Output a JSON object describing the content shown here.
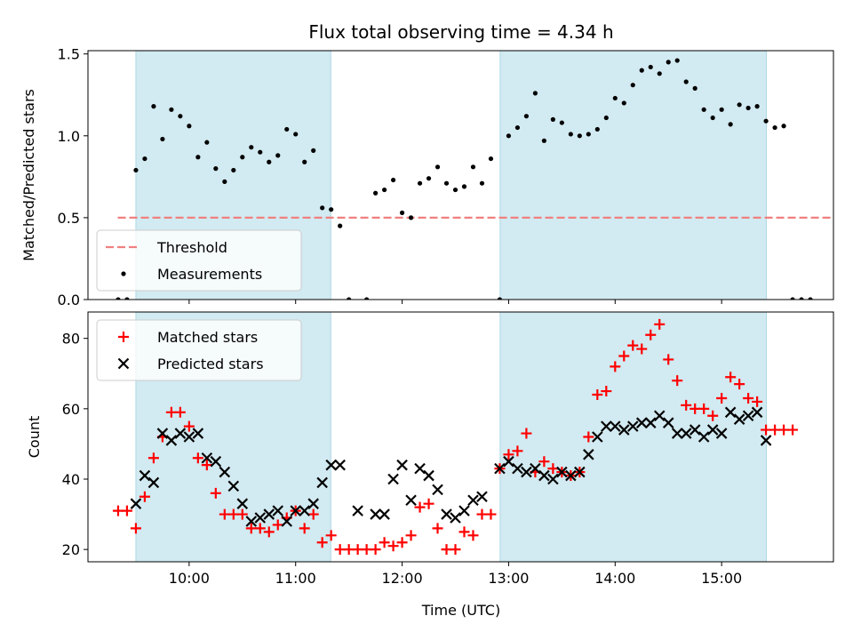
{
  "chart_data": {
    "type": "scatter",
    "title": "Flux total observing time = 4.34 h",
    "xlabel": "Time (UTC)",
    "x_ticks": [
      "10:00",
      "11:00",
      "12:00",
      "13:00",
      "14:00",
      "15:00"
    ],
    "x_tick_hours": [
      10,
      11,
      12,
      13,
      14,
      15
    ],
    "xlim_hours": [
      9.05,
      16.05
    ],
    "shaded_intervals_hours": [
      [
        9.5,
        11.33
      ],
      [
        12.92,
        15.42
      ]
    ],
    "shade_color": "#add8e6",
    "panels": [
      {
        "id": "ratio",
        "ylabel": "Matched/Predicted stars",
        "ylim": [
          0,
          1.52
        ],
        "y_ticks": [
          0.0,
          0.5,
          1.0,
          1.5
        ],
        "y_tick_labels": [
          "0.0",
          "0.5",
          "1.0",
          "1.5"
        ],
        "legend": {
          "placement": "lower-left",
          "entries": [
            "Threshold",
            "Measurements"
          ]
        },
        "threshold": {
          "name": "Threshold",
          "y": 0.5,
          "x_range_hours": [
            9.33,
            16.5
          ],
          "color": "#f08080"
        },
        "series": [
          {
            "name": "Measurements",
            "marker": "dot",
            "color": "#000000",
            "points": [
              [
                "09:20",
                0.0
              ],
              [
                "09:25",
                0.0
              ],
              [
                "09:30",
                0.79
              ],
              [
                "09:35",
                0.86
              ],
              [
                "09:40",
                1.18
              ],
              [
                "09:45",
                0.98
              ],
              [
                "09:50",
                1.16
              ],
              [
                "09:55",
                1.12
              ],
              [
                "10:00",
                1.06
              ],
              [
                "10:05",
                0.87
              ],
              [
                "10:10",
                0.96
              ],
              [
                "10:15",
                0.8
              ],
              [
                "10:20",
                0.72
              ],
              [
                "10:25",
                0.79
              ],
              [
                "10:30",
                0.87
              ],
              [
                "10:35",
                0.93
              ],
              [
                "10:40",
                0.9
              ],
              [
                "10:45",
                0.84
              ],
              [
                "10:50",
                0.88
              ],
              [
                "10:55",
                1.04
              ],
              [
                "11:00",
                1.01
              ],
              [
                "11:05",
                0.84
              ],
              [
                "11:10",
                0.91
              ],
              [
                "11:15",
                0.56
              ],
              [
                "11:20",
                0.55
              ],
              [
                "11:25",
                0.45
              ],
              [
                "11:30",
                0.0
              ],
              [
                "11:40",
                0.0
              ],
              [
                "11:45",
                0.65
              ],
              [
                "11:50",
                0.67
              ],
              [
                "11:55",
                0.73
              ],
              [
                "12:00",
                0.53
              ],
              [
                "12:05",
                0.5
              ],
              [
                "12:10",
                0.71
              ],
              [
                "12:15",
                0.74
              ],
              [
                "12:20",
                0.81
              ],
              [
                "12:25",
                0.71
              ],
              [
                "12:30",
                0.67
              ],
              [
                "12:35",
                0.69
              ],
              [
                "12:40",
                0.81
              ],
              [
                "12:45",
                0.71
              ],
              [
                "12:50",
                0.86
              ],
              [
                "12:55",
                0.0
              ],
              [
                "13:00",
                1.0
              ],
              [
                "13:05",
                1.05
              ],
              [
                "13:10",
                1.12
              ],
              [
                "13:15",
                1.26
              ],
              [
                "13:20",
                0.97
              ],
              [
                "13:25",
                1.1
              ],
              [
                "13:30",
                1.08
              ],
              [
                "13:35",
                1.01
              ],
              [
                "13:40",
                1.0
              ],
              [
                "13:45",
                1.01
              ],
              [
                "13:50",
                1.04
              ],
              [
                "13:55",
                1.11
              ],
              [
                "14:00",
                1.23
              ],
              [
                "14:05",
                1.2
              ],
              [
                "14:10",
                1.31
              ],
              [
                "14:15",
                1.4
              ],
              [
                "14:20",
                1.42
              ],
              [
                "14:25",
                1.38
              ],
              [
                "14:30",
                1.45
              ],
              [
                "14:35",
                1.46
              ],
              [
                "14:40",
                1.33
              ],
              [
                "14:45",
                1.29
              ],
              [
                "14:50",
                1.16
              ],
              [
                "14:55",
                1.11
              ],
              [
                "15:00",
                1.16
              ],
              [
                "15:05",
                1.07
              ],
              [
                "15:10",
                1.19
              ],
              [
                "15:15",
                1.17
              ],
              [
                "15:20",
                1.18
              ],
              [
                "15:25",
                1.09
              ],
              [
                "15:30",
                1.05
              ],
              [
                "15:35",
                1.06
              ],
              [
                "15:40",
                0.0
              ],
              [
                "15:45",
                0.0
              ],
              [
                "15:50",
                0.0
              ]
            ]
          }
        ]
      },
      {
        "id": "count",
        "ylabel": "Count",
        "ylim": [
          16.5,
          87.5
        ],
        "y_ticks": [
          20,
          40,
          60,
          80
        ],
        "y_tick_labels": [
          "20",
          "40",
          "60",
          "80"
        ],
        "legend": {
          "placement": "upper-left",
          "entries": [
            "Matched stars",
            "Predicted stars"
          ]
        },
        "series": [
          {
            "name": "Matched stars",
            "marker": "plus",
            "color": "#ff0000",
            "points": [
              [
                "09:20",
                31
              ],
              [
                "09:25",
                31
              ],
              [
                "09:30",
                26
              ],
              [
                "09:35",
                35
              ],
              [
                "09:40",
                46
              ],
              [
                "09:45",
                52
              ],
              [
                "09:50",
                59
              ],
              [
                "09:55",
                59
              ],
              [
                "10:00",
                55
              ],
              [
                "10:05",
                46
              ],
              [
                "10:10",
                44
              ],
              [
                "10:15",
                36
              ],
              [
                "10:20",
                30
              ],
              [
                "10:25",
                30
              ],
              [
                "10:30",
                30
              ],
              [
                "10:35",
                26
              ],
              [
                "10:40",
                26
              ],
              [
                "10:45",
                25
              ],
              [
                "10:50",
                27
              ],
              [
                "10:55",
                29
              ],
              [
                "11:00",
                31
              ],
              [
                "11:05",
                26
              ],
              [
                "11:10",
                30
              ],
              [
                "11:15",
                22
              ],
              [
                "11:20",
                24
              ],
              [
                "11:25",
                20
              ],
              [
                "11:30",
                20
              ],
              [
                "11:35",
                20
              ],
              [
                "11:40",
                20
              ],
              [
                "11:45",
                20
              ],
              [
                "11:50",
                22
              ],
              [
                "11:55",
                21
              ],
              [
                "12:00",
                22
              ],
              [
                "12:05",
                24
              ],
              [
                "12:10",
                32
              ],
              [
                "12:15",
                33
              ],
              [
                "12:20",
                26
              ],
              [
                "12:25",
                20
              ],
              [
                "12:30",
                20
              ],
              [
                "12:35",
                25
              ],
              [
                "12:40",
                24
              ],
              [
                "12:45",
                30
              ],
              [
                "12:50",
                30
              ],
              [
                "12:55",
                43
              ],
              [
                "13:00",
                47
              ],
              [
                "13:05",
                48
              ],
              [
                "13:10",
                53
              ],
              [
                "13:15",
                42
              ],
              [
                "13:20",
                45
              ],
              [
                "13:25",
                43
              ],
              [
                "13:30",
                42
              ],
              [
                "13:35",
                41
              ],
              [
                "13:40",
                42
              ],
              [
                "13:45",
                52
              ],
              [
                "13:50",
                64
              ],
              [
                "13:55",
                65
              ],
              [
                "14:00",
                72
              ],
              [
                "14:05",
                75
              ],
              [
                "14:10",
                78
              ],
              [
                "14:15",
                77
              ],
              [
                "14:20",
                81
              ],
              [
                "14:25",
                84
              ],
              [
                "14:30",
                74
              ],
              [
                "14:35",
                68
              ],
              [
                "14:40",
                61
              ],
              [
                "14:45",
                60
              ],
              [
                "14:50",
                60
              ],
              [
                "14:55",
                58
              ],
              [
                "15:00",
                63
              ],
              [
                "15:05",
                69
              ],
              [
                "15:10",
                67
              ],
              [
                "15:15",
                63
              ],
              [
                "15:20",
                62
              ],
              [
                "15:25",
                54
              ],
              [
                "15:30",
                54
              ],
              [
                "15:35",
                54
              ],
              [
                "15:40",
                54
              ]
            ]
          },
          {
            "name": "Predicted stars",
            "marker": "x",
            "color": "#000000",
            "points": [
              [
                "09:30",
                33
              ],
              [
                "09:35",
                41
              ],
              [
                "09:40",
                39
              ],
              [
                "09:45",
                53
              ],
              [
                "09:50",
                51
              ],
              [
                "09:55",
                53
              ],
              [
                "10:00",
                52
              ],
              [
                "10:05",
                53
              ],
              [
                "10:10",
                46
              ],
              [
                "10:15",
                45
              ],
              [
                "10:20",
                42
              ],
              [
                "10:25",
                38
              ],
              [
                "10:30",
                33
              ],
              [
                "10:35",
                28
              ],
              [
                "10:40",
                29
              ],
              [
                "10:45",
                30
              ],
              [
                "10:50",
                31
              ],
              [
                "10:55",
                28
              ],
              [
                "11:00",
                31
              ],
              [
                "11:05",
                31
              ],
              [
                "11:10",
                33
              ],
              [
                "11:15",
                39
              ],
              [
                "11:20",
                44
              ],
              [
                "11:25",
                44
              ],
              [
                "11:35",
                31
              ],
              [
                "11:45",
                30
              ],
              [
                "11:50",
                30
              ],
              [
                "11:55",
                40
              ],
              [
                "12:00",
                44
              ],
              [
                "12:05",
                34
              ],
              [
                "12:10",
                43
              ],
              [
                "12:15",
                41
              ],
              [
                "12:20",
                37
              ],
              [
                "12:25",
                30
              ],
              [
                "12:30",
                29
              ],
              [
                "12:35",
                31
              ],
              [
                "12:40",
                34
              ],
              [
                "12:45",
                35
              ],
              [
                "12:55",
                43
              ],
              [
                "13:00",
                45
              ],
              [
                "13:05",
                43
              ],
              [
                "13:10",
                42
              ],
              [
                "13:15",
                43
              ],
              [
                "13:20",
                41
              ],
              [
                "13:25",
                40
              ],
              [
                "13:30",
                42
              ],
              [
                "13:35",
                41
              ],
              [
                "13:40",
                42
              ],
              [
                "13:45",
                47
              ],
              [
                "13:50",
                52
              ],
              [
                "13:55",
                55
              ],
              [
                "14:00",
                55
              ],
              [
                "14:05",
                54
              ],
              [
                "14:10",
                55
              ],
              [
                "14:15",
                56
              ],
              [
                "14:20",
                56
              ],
              [
                "14:25",
                58
              ],
              [
                "14:30",
                56
              ],
              [
                "14:35",
                53
              ],
              [
                "14:40",
                53
              ],
              [
                "14:45",
                54
              ],
              [
                "14:50",
                52
              ],
              [
                "14:55",
                54
              ],
              [
                "15:00",
                53
              ],
              [
                "15:05",
                59
              ],
              [
                "15:10",
                57
              ],
              [
                "15:15",
                58
              ],
              [
                "15:20",
                59
              ],
              [
                "15:25",
                51
              ]
            ]
          }
        ]
      }
    ]
  }
}
